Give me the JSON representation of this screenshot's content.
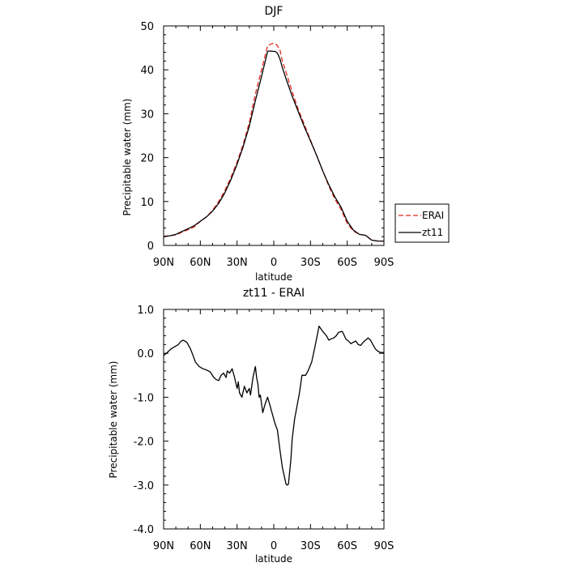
{
  "chart_data": [
    {
      "type": "line",
      "title": "DJF",
      "xlabel": "latitude",
      "ylabel": "Precipitable water (mm)",
      "xlim": [
        90,
        -90
      ],
      "ylim": [
        0,
        50
      ],
      "x_ticks": [
        90,
        60,
        30,
        0,
        -30,
        -60,
        -90
      ],
      "x_tick_labels": [
        "90N",
        "60N",
        "30N",
        "0",
        "30S",
        "60S",
        "90S"
      ],
      "y_ticks": [
        0,
        10,
        20,
        30,
        40,
        50
      ],
      "y_tick_labels": [
        "0",
        "10",
        "20",
        "30",
        "40",
        "50"
      ],
      "legend_position": "right",
      "colors": {
        "ERAI": "#e0281e",
        "zt11": "#000000"
      },
      "series": [
        {
          "name": "ERAI",
          "style": "dashed",
          "x": [
            90,
            85,
            80,
            75,
            70,
            65,
            60,
            55,
            50,
            45,
            40,
            35,
            30,
            25,
            20,
            15,
            10,
            5,
            3,
            1,
            -1,
            -3,
            -5,
            -7,
            -10,
            -15,
            -20,
            -25,
            -30,
            -35,
            -40,
            -45,
            -50,
            -55,
            -60,
            -65,
            -70,
            -75,
            -80,
            -85,
            -90
          ],
          "values": [
            2.1,
            2.2,
            2.4,
            3.0,
            3.6,
            4.2,
            5.5,
            6.5,
            8.0,
            10.0,
            12.5,
            15.5,
            19.0,
            23.0,
            28.0,
            34.5,
            40.0,
            45.5,
            45.8,
            46.0,
            46.0,
            45.5,
            44.5,
            42.0,
            39.5,
            35.0,
            31.0,
            27.5,
            24.0,
            20.5,
            17.0,
            13.5,
            10.5,
            8.2,
            5.0,
            3.3,
            2.5,
            2.3,
            1.2,
            1.0,
            1.0
          ]
        },
        {
          "name": "zt11",
          "style": "solid",
          "x": [
            90,
            85,
            80,
            75,
            70,
            65,
            60,
            55,
            50,
            45,
            40,
            35,
            30,
            25,
            20,
            15,
            10,
            5,
            3,
            1,
            -1,
            -3,
            -5,
            -7,
            -10,
            -15,
            -20,
            -25,
            -30,
            -35,
            -40,
            -45,
            -50,
            -55,
            -60,
            -65,
            -70,
            -75,
            -80,
            -85,
            -90
          ],
          "values": [
            2.0,
            2.2,
            2.5,
            3.2,
            3.8,
            4.5,
            5.5,
            6.5,
            7.8,
            9.6,
            12.0,
            15.0,
            18.5,
            22.5,
            27.2,
            33.0,
            38.5,
            44.2,
            44.3,
            44.2,
            44.2,
            43.8,
            42.5,
            40.5,
            38.0,
            34.0,
            30.5,
            27.0,
            23.8,
            20.5,
            17.0,
            13.8,
            11.0,
            8.7,
            5.5,
            3.5,
            2.5,
            2.3,
            1.2,
            1.0,
            1.0
          ]
        }
      ]
    },
    {
      "type": "line",
      "title": "zt11 - ERAI",
      "xlabel": "latitude",
      "ylabel": "Precipitable water (mm)",
      "xlim": [
        90,
        -90
      ],
      "ylim": [
        -4.0,
        1.0
      ],
      "x_ticks": [
        90,
        60,
        30,
        0,
        -30,
        -60,
        -90
      ],
      "x_tick_labels": [
        "90N",
        "60N",
        "30N",
        "0",
        "30S",
        "60S",
        "90S"
      ],
      "y_ticks": [
        1.0,
        0.0,
        -1.0,
        -2.0,
        -3.0,
        -4.0
      ],
      "y_tick_labels": [
        "1.0",
        "0.0",
        "-1.0",
        "-2.0",
        "-3.0",
        "-4.0"
      ],
      "colors": {
        "line": "#000000"
      },
      "series": [
        {
          "style": "solid",
          "x": [
            90,
            87,
            84,
            81,
            78,
            76,
            74,
            71,
            68,
            66,
            64,
            61,
            58,
            55,
            52,
            49,
            47,
            45,
            43,
            41,
            39,
            38,
            36,
            34,
            32,
            30,
            29,
            28,
            26,
            24,
            22,
            20,
            19,
            17,
            15,
            14,
            13,
            12,
            11,
            9,
            7,
            5,
            3,
            1,
            -1,
            -3,
            -5,
            -7,
            -9,
            -10,
            -11,
            -12,
            -13,
            -14,
            -15,
            -17,
            -19,
            -21,
            -23,
            -26,
            -28,
            -31,
            -34,
            -37,
            -40,
            -43,
            -45,
            -47,
            -49,
            -51,
            -53,
            -56,
            -59,
            -61,
            -63,
            -65,
            -67,
            -69,
            -71,
            -73,
            -75,
            -77,
            -79,
            -81,
            -83,
            -85,
            -87,
            -90
          ],
          "values": [
            -0.05,
            0.02,
            0.1,
            0.15,
            0.2,
            0.27,
            0.3,
            0.25,
            0.1,
            -0.05,
            -0.2,
            -0.3,
            -0.35,
            -0.38,
            -0.42,
            -0.55,
            -0.6,
            -0.62,
            -0.5,
            -0.45,
            -0.55,
            -0.4,
            -0.45,
            -0.35,
            -0.55,
            -0.8,
            -0.65,
            -0.9,
            -1.0,
            -0.75,
            -0.9,
            -0.8,
            -0.95,
            -0.55,
            -0.3,
            -0.55,
            -0.7,
            -1.0,
            -0.95,
            -1.35,
            -1.15,
            -1.0,
            -1.2,
            -1.4,
            -1.6,
            -1.75,
            -2.2,
            -2.6,
            -2.85,
            -2.98,
            -3.0,
            -2.98,
            -2.7,
            -2.4,
            -1.95,
            -1.5,
            -1.2,
            -0.9,
            -0.5,
            -0.5,
            -0.4,
            -0.2,
            0.2,
            0.62,
            0.5,
            0.4,
            0.3,
            0.33,
            0.35,
            0.4,
            0.48,
            0.5,
            0.32,
            0.28,
            0.22,
            0.25,
            0.28,
            0.2,
            0.18,
            0.25,
            0.3,
            0.35,
            0.3,
            0.2,
            0.1,
            0.05,
            0.02,
            0.02
          ]
        }
      ]
    }
  ]
}
